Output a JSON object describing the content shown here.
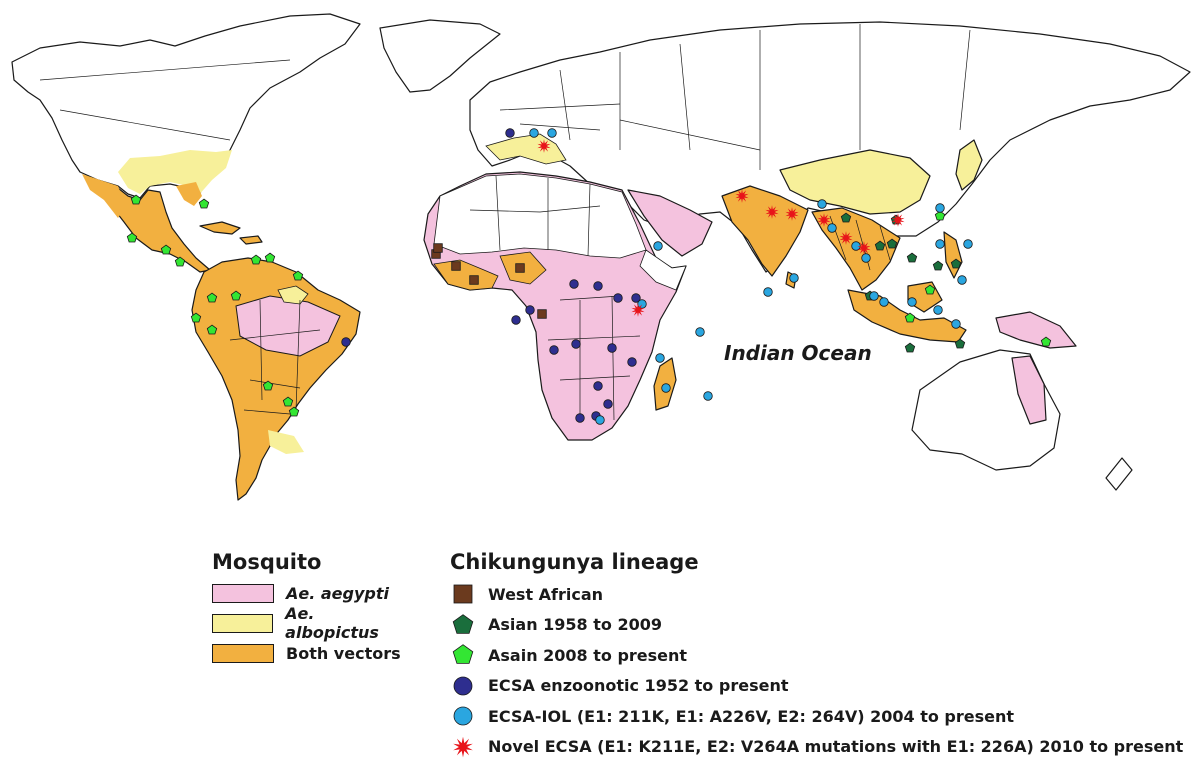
{
  "map": {
    "ocean_label": "Indian Ocean"
  },
  "colors": {
    "aegypti": "#f4c2de",
    "albopictus": "#f7f09a",
    "both": "#f2b040",
    "west_african": "#6b3a1e",
    "asian_old": "#1a6e3c",
    "asian_new": "#33e633",
    "ecsa_enzootic": "#2e2e8f",
    "ecsa_iol": "#2aa6e0",
    "novel_ecsa": "#e8141a"
  },
  "mosquito_legend": {
    "title": "Mosquito",
    "items": [
      {
        "label": "Ae. aegypti",
        "color": "#f4c2de",
        "italic": true
      },
      {
        "label": "Ae. albopictus",
        "color": "#f7f09a",
        "italic": true
      },
      {
        "label": "Both vectors",
        "color": "#f2b040",
        "italic": false
      }
    ]
  },
  "lineage_legend": {
    "title": "Chikungunya lineage",
    "items": [
      {
        "label": "West African",
        "icon": "square",
        "color": "#6b3a1e"
      },
      {
        "label": "Asian 1958 to 2009",
        "icon": "pentagon",
        "color": "#1a6e3c"
      },
      {
        "label": "Asain 2008 to present",
        "icon": "pentagon",
        "color": "#33e633"
      },
      {
        "label": "ECSA enzoonotic 1952 to present",
        "icon": "circle",
        "color": "#2e2e8f"
      },
      {
        "label": "ECSA-IOL (E1: 211K, E1: A226V, E2: 264V) 2004 to present",
        "icon": "circle",
        "color": "#2aa6e0"
      },
      {
        "label": "Novel ECSA (E1: K211E, E2: V264A mutations with E1: 226A) 2010 to present",
        "icon": "star",
        "color": "#e8141a"
      }
    ]
  }
}
